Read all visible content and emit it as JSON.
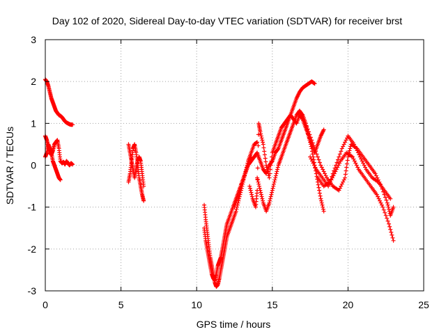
{
  "chart_data": {
    "type": "scatter",
    "title": "Day 102 of 2020, Sidereal Day-to-day VTEC variation (SDTVAR) for receiver brst",
    "xlabel": "GPS time / hours",
    "ylabel": "SDTVAR / TECUs",
    "xlim": [
      0,
      25
    ],
    "ylim": [
      -3,
      3
    ],
    "xticks": [
      "0",
      "5",
      "10",
      "15",
      "20",
      "25"
    ],
    "yticks": [
      "-3",
      "-2",
      "-1",
      "0",
      "1",
      "2",
      "3"
    ],
    "grid": true,
    "marker": "plus",
    "color": "#ff0000",
    "series": [
      {
        "x": [
          0.0,
          0.1,
          0.2,
          0.3,
          0.4,
          0.5,
          0.6,
          0.7,
          0.8,
          0.9,
          1.0,
          1.1,
          1.2,
          1.3,
          1.4,
          1.5,
          1.6,
          1.7,
          1.8
        ],
        "y": [
          2.05,
          2.0,
          1.9,
          1.75,
          1.6,
          1.5,
          1.4,
          1.3,
          1.25,
          1.2,
          1.18,
          1.15,
          1.1,
          1.05,
          1.02,
          1.0,
          0.98,
          0.97,
          0.97
        ]
      },
      {
        "x": [
          0.0,
          0.1,
          0.2,
          0.3,
          0.4,
          0.5,
          0.6,
          0.7,
          0.8,
          0.9,
          1.0,
          1.1,
          1.2,
          1.3,
          1.4,
          1.5,
          1.6,
          1.7,
          1.8
        ],
        "y": [
          0.7,
          0.6,
          0.45,
          0.3,
          0.25,
          0.35,
          0.5,
          0.55,
          0.6,
          0.4,
          0.1,
          0.05,
          0.08,
          0.02,
          0.1,
          0.05,
          0.0,
          0.05,
          0.02
        ]
      },
      {
        "x": [
          0.0,
          0.1,
          0.2,
          0.3,
          0.4,
          0.5,
          0.6,
          0.7,
          0.8,
          0.9,
          1.0
        ],
        "y": [
          0.2,
          0.3,
          0.5,
          0.4,
          0.3,
          0.1,
          0.0,
          -0.1,
          -0.2,
          -0.3,
          -0.35
        ]
      },
      {
        "x": [
          5.5,
          5.6,
          5.7,
          5.8,
          5.9,
          6.0,
          6.1,
          6.2,
          6.3,
          6.4,
          6.5
        ],
        "y": [
          -0.4,
          -0.2,
          0.1,
          0.4,
          0.5,
          0.3,
          0.0,
          -0.3,
          -0.5,
          -0.7,
          -0.85
        ]
      },
      {
        "x": [
          5.5,
          5.6,
          5.7,
          5.8,
          5.9,
          6.0,
          6.1,
          6.2,
          6.3,
          6.4,
          6.5
        ],
        "y": [
          0.5,
          0.3,
          0.1,
          -0.1,
          -0.3,
          -0.1,
          0.1,
          0.2,
          0.1,
          -0.2,
          -0.5
        ]
      },
      {
        "x": [
          10.5,
          10.6,
          10.7,
          10.8,
          10.9,
          11.0,
          11.1,
          11.2,
          11.3,
          11.4,
          11.5,
          11.6,
          11.7,
          11.8,
          11.9,
          12.0,
          12.2,
          12.4,
          12.6,
          12.8,
          13.0,
          13.2,
          13.4,
          13.6,
          13.8,
          14.0
        ],
        "y": [
          -0.95,
          -1.3,
          -1.6,
          -1.9,
          -2.2,
          -2.4,
          -2.6,
          -2.8,
          -2.9,
          -2.85,
          -2.7,
          -2.5,
          -2.3,
          -2.1,
          -1.9,
          -1.7,
          -1.5,
          -1.3,
          -1.1,
          -0.8,
          -0.5,
          -0.2,
          0.1,
          0.3,
          0.5,
          0.55
        ]
      },
      {
        "x": [
          10.5,
          10.6,
          10.7,
          10.8,
          10.9,
          11.0,
          11.1,
          11.2,
          11.3,
          11.4,
          11.5,
          11.6,
          11.7,
          11.8,
          11.9,
          12.0,
          12.2,
          12.4,
          12.6,
          12.8,
          13.0,
          13.2,
          13.4,
          13.6
        ],
        "y": [
          -1.5,
          -1.8,
          -2.0,
          -2.2,
          -2.4,
          -2.6,
          -2.7,
          -2.75,
          -2.6,
          -2.4,
          -2.3,
          -2.2,
          -2.0,
          -1.8,
          -1.6,
          -1.4,
          -1.2,
          -1.0,
          -0.8,
          -0.6,
          -0.4,
          -0.2,
          0.0,
          0.2
        ]
      },
      {
        "x": [
          12.5,
          12.8,
          13.0,
          13.2,
          13.4,
          13.6,
          13.8,
          14.0,
          14.2,
          14.4,
          14.6,
          14.8,
          15.0,
          15.2,
          15.4,
          15.6,
          15.8,
          16.0,
          16.2,
          16.4,
          16.6,
          16.8,
          17.0,
          17.2,
          17.4,
          17.6,
          17.8
        ],
        "y": [
          -1.0,
          -0.7,
          -0.4,
          -0.2,
          0.0,
          0.1,
          0.2,
          0.3,
          0.1,
          -0.1,
          -0.2,
          0.0,
          0.1,
          0.3,
          0.4,
          0.6,
          0.8,
          1.0,
          1.2,
          1.4,
          1.6,
          1.75,
          1.85,
          1.9,
          1.95,
          2.0,
          1.95
        ]
      },
      {
        "x": [
          13.5,
          13.7,
          13.9,
          14.0,
          14.1,
          14.2,
          14.4,
          14.6,
          14.8,
          15.0,
          15.2,
          15.4,
          15.6,
          15.8,
          16.0,
          16.2,
          16.4,
          16.6,
          16.8,
          17.0,
          17.2,
          17.4,
          17.6,
          17.8,
          18.0,
          18.2,
          18.4
        ],
        "y": [
          -0.5,
          -0.8,
          -1.0,
          -0.6,
          1.0,
          0.8,
          0.5,
          0.0,
          -0.3,
          0.3,
          0.5,
          0.7,
          0.9,
          1.0,
          1.1,
          1.2,
          1.1,
          1.0,
          1.2,
          1.1,
          0.9,
          0.7,
          0.5,
          0.3,
          0.5,
          0.7,
          0.85
        ]
      },
      {
        "x": [
          14.0,
          14.2,
          14.4,
          14.6,
          14.8,
          15.0,
          15.2,
          15.4,
          15.6,
          15.8,
          16.0,
          16.2,
          16.4,
          16.6,
          16.8,
          17.0,
          17.2,
          17.4,
          17.6,
          17.8,
          18.0,
          18.2,
          18.4
        ],
        "y": [
          -0.3,
          -0.6,
          -0.9,
          -1.1,
          -0.9,
          -0.6,
          -0.3,
          0.0,
          0.2,
          0.4,
          0.6,
          0.8,
          1.0,
          1.2,
          1.3,
          1.2,
          1.0,
          0.7,
          0.4,
          0.0,
          -0.4,
          -0.8,
          -1.1
        ]
      },
      {
        "x": [
          17.0,
          17.4,
          17.8,
          18.2,
          18.6,
          19.0,
          19.4,
          19.8,
          20.0,
          20.2,
          20.6,
          21.0,
          21.4,
          21.8,
          22.2,
          22.6,
          22.8,
          23.0
        ],
        "y": [
          1.2,
          0.8,
          0.4,
          0.0,
          -0.3,
          -0.5,
          -0.6,
          -0.3,
          0.2,
          0.5,
          0.4,
          0.2,
          0.0,
          -0.2,
          -0.5,
          -0.9,
          -1.2,
          -1.0
        ]
      },
      {
        "x": [
          17.5,
          17.9,
          18.3,
          18.7,
          19.1,
          19.5,
          19.9,
          20.3,
          20.7,
          21.1,
          21.5,
          21.9,
          22.3,
          22.7,
          23.0
        ],
        "y": [
          0.2,
          -0.1,
          -0.3,
          -0.5,
          -0.2,
          0.1,
          0.3,
          0.2,
          -0.1,
          -0.3,
          -0.5,
          -0.7,
          -1.0,
          -1.4,
          -1.8
        ]
      },
      {
        "x": [
          18.0,
          18.4,
          18.8,
          19.2,
          19.6,
          20.0,
          20.4,
          20.8,
          21.2,
          21.6,
          22.0,
          22.4,
          22.8
        ],
        "y": [
          -0.3,
          -0.5,
          -0.4,
          0.0,
          0.4,
          0.7,
          0.5,
          0.2,
          -0.1,
          -0.3,
          -0.4,
          -0.6,
          -0.8
        ]
      }
    ]
  }
}
